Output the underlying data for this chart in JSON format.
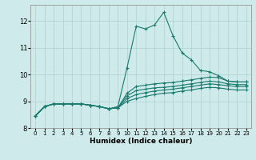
{
  "title": "",
  "xlabel": "Humidex (Indice chaleur)",
  "bg_color": "#ceeaea",
  "grid_color": "#afd0d0",
  "line_color": "#1a7a6e",
  "xlim": [
    -0.5,
    23.5
  ],
  "ylim": [
    8.0,
    12.6
  ],
  "yticks": [
    8,
    9,
    10,
    11,
    12
  ],
  "xticks": [
    0,
    1,
    2,
    3,
    4,
    5,
    6,
    7,
    8,
    9,
    10,
    11,
    12,
    13,
    14,
    15,
    16,
    17,
    18,
    19,
    20,
    21,
    22,
    23
  ],
  "lines": [
    [
      8.45,
      8.8,
      8.9,
      8.9,
      8.9,
      8.9,
      8.85,
      8.8,
      8.72,
      8.8,
      10.25,
      11.8,
      11.7,
      11.85,
      12.32,
      11.45,
      10.8,
      10.55,
      10.15,
      10.1,
      9.95,
      9.75,
      9.72,
      9.72
    ],
    [
      8.45,
      8.8,
      8.9,
      8.9,
      8.9,
      8.9,
      8.85,
      8.8,
      8.72,
      8.75,
      9.3,
      9.55,
      9.6,
      9.65,
      9.68,
      9.7,
      9.75,
      9.8,
      9.85,
      9.9,
      9.88,
      9.75,
      9.72,
      9.72
    ],
    [
      8.45,
      8.8,
      8.9,
      8.9,
      8.9,
      8.9,
      8.85,
      8.8,
      8.72,
      8.75,
      9.2,
      9.4,
      9.45,
      9.5,
      9.52,
      9.55,
      9.6,
      9.65,
      9.7,
      9.75,
      9.72,
      9.65,
      9.62,
      9.62
    ],
    [
      8.45,
      8.8,
      8.9,
      8.9,
      8.9,
      8.9,
      8.85,
      8.8,
      8.72,
      8.75,
      9.1,
      9.25,
      9.32,
      9.38,
      9.42,
      9.45,
      9.5,
      9.55,
      9.6,
      9.65,
      9.62,
      9.58,
      9.55,
      9.55
    ],
    [
      8.45,
      8.8,
      8.9,
      8.9,
      8.9,
      8.9,
      8.85,
      8.8,
      8.72,
      8.75,
      9.0,
      9.1,
      9.18,
      9.25,
      9.3,
      9.32,
      9.38,
      9.42,
      9.48,
      9.52,
      9.5,
      9.45,
      9.42,
      9.42
    ]
  ]
}
